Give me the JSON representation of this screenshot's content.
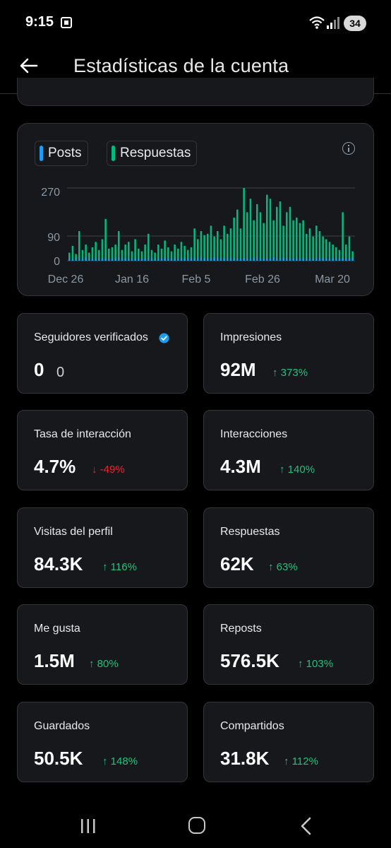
{
  "status_bar": {
    "time": "9:15",
    "battery": "34"
  },
  "header": {
    "title": "Estadísticas de la cuenta"
  },
  "chart": {
    "legend": [
      {
        "label": "Posts",
        "color": "#1d9bf0"
      },
      {
        "label": "Respuestas",
        "color": "#00ba7c"
      }
    ],
    "y_ticks": [
      "270",
      "90",
      "0"
    ],
    "x_ticks": [
      "Dec 26",
      "Jan 16",
      "Feb 5",
      "Feb 26",
      "Mar 20"
    ]
  },
  "chart_data": {
    "type": "bar",
    "title": "",
    "xlabel": "",
    "ylabel": "",
    "ylim": [
      0,
      270
    ],
    "x_tick_labels": [
      "Dec 26",
      "Jan 16",
      "Feb 5",
      "Feb 26",
      "Mar 20"
    ],
    "grid": true,
    "legend_placement": "top-left",
    "series": [
      {
        "name": "Posts",
        "color": "#1d9bf0",
        "values": [
          8,
          6,
          10,
          9,
          7,
          12,
          6,
          8,
          10,
          7,
          9,
          11,
          6,
          8,
          10,
          12,
          7,
          9,
          8,
          6,
          10,
          9,
          7,
          8,
          11,
          9,
          6,
          10,
          8,
          12,
          9,
          7,
          10,
          8,
          11,
          9,
          7,
          12,
          10,
          8,
          14,
          9,
          11,
          10,
          13,
          12,
          9,
          11,
          8,
          12,
          10,
          7,
          9,
          11,
          10,
          8,
          12,
          14,
          9,
          10,
          11,
          8,
          13,
          10,
          9,
          12,
          11,
          10,
          8,
          12,
          9,
          11,
          10,
          8,
          9,
          12,
          10,
          11,
          9,
          8,
          10,
          12,
          9,
          11,
          8,
          10,
          9
        ]
      },
      {
        "name": "Respuestas",
        "color": "#00ba7c",
        "values": [
          30,
          55,
          25,
          110,
          40,
          60,
          30,
          50,
          70,
          40,
          80,
          155,
          45,
          50,
          60,
          110,
          40,
          60,
          70,
          35,
          80,
          45,
          35,
          60,
          100,
          40,
          30,
          60,
          45,
          75,
          50,
          35,
          60,
          45,
          70,
          55,
          40,
          50,
          120,
          80,
          110,
          95,
          100,
          130,
          90,
          110,
          80,
          130,
          100,
          120,
          160,
          190,
          120,
          270,
          180,
          230,
          150,
          210,
          180,
          140,
          245,
          230,
          150,
          200,
          220,
          130,
          180,
          200,
          150,
          160,
          140,
          150,
          100,
          120,
          90,
          130,
          110,
          90,
          80,
          70,
          60,
          50,
          40,
          180,
          60,
          90,
          35
        ]
      }
    ]
  },
  "stats": [
    {
      "label": "Seguidores verificados",
      "value": "0",
      "secondary": "0",
      "verified": true
    },
    {
      "label": "Impresiones",
      "value": "92M",
      "change": "373%",
      "direction": "up"
    },
    {
      "label": "Tasa de interacción",
      "value": "4.7%",
      "change": "-49%",
      "direction": "down"
    },
    {
      "label": "Interacciones",
      "value": "4.3M",
      "change": "140%",
      "direction": "up"
    },
    {
      "label": "Visitas del perfil",
      "value": "84.3K",
      "change": "116%",
      "direction": "up"
    },
    {
      "label": "Respuestas",
      "value": "62K",
      "change": "63%",
      "direction": "up"
    },
    {
      "label": "Me gusta",
      "value": "1.5M",
      "change": "80%",
      "direction": "up"
    },
    {
      "label": "Reposts",
      "value": "576.5K",
      "change": "103%",
      "direction": "up"
    },
    {
      "label": "Guardados",
      "value": "50.5K",
      "change": "148%",
      "direction": "up"
    },
    {
      "label": "Compartidos",
      "value": "31.8K",
      "change": "112%",
      "direction": "up"
    }
  ],
  "arrows": {
    "up": "↑",
    "down": "↓"
  },
  "icons": {
    "back": "arrow-left-icon",
    "info": "info-icon",
    "verified": "verified-badge-icon",
    "nav_recent": "recent-apps-icon",
    "nav_home": "home-icon",
    "nav_back": "chevron-left-icon"
  }
}
